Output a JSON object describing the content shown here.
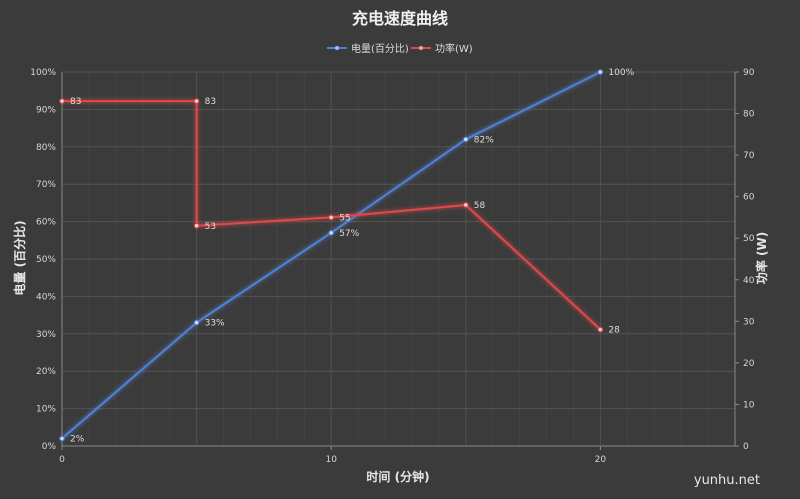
{
  "colors": {
    "background": "#3b3b3b",
    "grid": "#545454",
    "axis": "#8a8a8a"
  },
  "chart_data": {
    "type": "line",
    "title": "充电速度曲线",
    "xlabel": "时间 (分钟)",
    "ylabel": "电量 (百分比)",
    "y2label": "功率 (W)",
    "xlim": [
      0,
      25
    ],
    "ylim": [
      0,
      100
    ],
    "y2lim": [
      0,
      90
    ],
    "x_ticks": [
      0,
      10,
      20
    ],
    "x_tick_labels": [
      "0",
      "10",
      "20"
    ],
    "y_ticks": [
      0,
      10,
      20,
      30,
      40,
      50,
      60,
      70,
      80,
      90,
      100
    ],
    "y_tick_labels": [
      "0%",
      "10%",
      "20%",
      "30%",
      "40%",
      "50%",
      "60%",
      "70%",
      "80%",
      "90%",
      "100%"
    ],
    "y2_ticks": [
      0,
      10,
      20,
      30,
      40,
      50,
      60,
      70,
      80,
      90
    ],
    "y2_tick_labels": [
      "0",
      "10",
      "20",
      "30",
      "40",
      "50",
      "60",
      "70",
      "80",
      "90"
    ],
    "grid": true,
    "legend_position": "top-center",
    "series": [
      {
        "name": "电量(百分比)",
        "axis": "left",
        "color": "#4f82d6",
        "x": [
          0,
          5,
          10,
          15,
          20
        ],
        "values": [
          2,
          33,
          57,
          82,
          100
        ],
        "labels": [
          "2%",
          "33%",
          "57%",
          "82%",
          "100%"
        ]
      },
      {
        "name": "功率(W)",
        "axis": "right",
        "color": "#e0484a",
        "x": [
          0,
          5,
          5,
          10,
          15,
          20
        ],
        "values": [
          83,
          83,
          53,
          55,
          58,
          28
        ],
        "labels": [
          "83",
          "83",
          "53",
          "55",
          "58",
          "28"
        ]
      }
    ]
  },
  "watermark": "yunhu.net"
}
